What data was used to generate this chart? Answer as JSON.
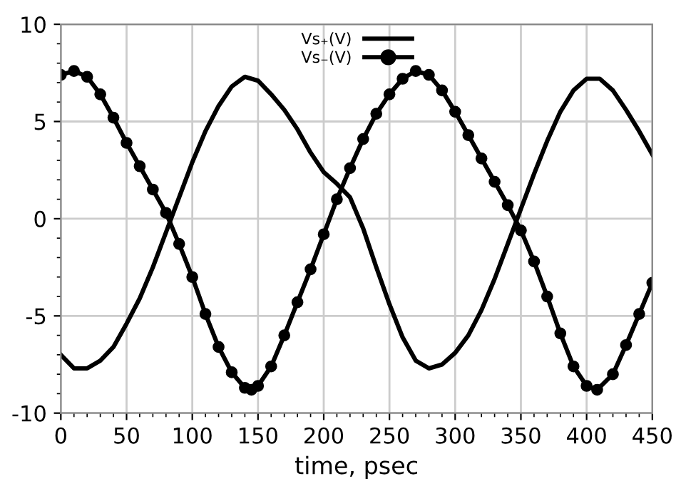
{
  "chart_data": {
    "type": "line",
    "xlabel": "time, psec",
    "xlim": [
      0,
      450
    ],
    "xticks": [
      0,
      50,
      100,
      150,
      200,
      250,
      300,
      350,
      400,
      450
    ],
    "ylim": [
      -10,
      10
    ],
    "yticks": [
      -10,
      -5,
      0,
      5,
      10
    ],
    "grid": true,
    "legend": "top",
    "series": [
      {
        "name": "Vs₊(V)",
        "color": "#000000",
        "marker": "none",
        "x": [
          0,
          10,
          20,
          30,
          40,
          50,
          60,
          70,
          80,
          90,
          100,
          110,
          120,
          130,
          140,
          150,
          160,
          170,
          180,
          190,
          200,
          210,
          220,
          230,
          240,
          250,
          260,
          270,
          280,
          290,
          300,
          310,
          320,
          330,
          340,
          350,
          360,
          370,
          380,
          390,
          400,
          410,
          420,
          430,
          440,
          450
        ],
        "values": [
          -7.0,
          -7.7,
          -7.7,
          -7.3,
          -6.6,
          -5.4,
          -4.1,
          -2.5,
          -0.7,
          1.1,
          2.9,
          4.5,
          5.8,
          6.8,
          7.3,
          7.1,
          6.4,
          5.6,
          4.6,
          3.4,
          2.4,
          1.8,
          1.1,
          -0.5,
          -2.5,
          -4.4,
          -6.1,
          -7.3,
          -7.7,
          -7.5,
          -6.9,
          -6.0,
          -4.7,
          -3.1,
          -1.3,
          0.5,
          2.3,
          4.0,
          5.5,
          6.6,
          7.2,
          7.2,
          6.6,
          5.6,
          4.5,
          3.3
        ]
      },
      {
        "name": "Vs₋(V)",
        "color": "#000000",
        "marker": "circle",
        "x": [
          0,
          10,
          20,
          30,
          40,
          50,
          60,
          70,
          80,
          90,
          100,
          110,
          120,
          130,
          140,
          145,
          150,
          160,
          170,
          180,
          190,
          200,
          210,
          220,
          230,
          240,
          250,
          260,
          270,
          280,
          290,
          300,
          310,
          320,
          330,
          340,
          350,
          360,
          370,
          380,
          390,
          400,
          408,
          420,
          430,
          440,
          450
        ],
        "values": [
          7.4,
          7.6,
          7.3,
          6.4,
          5.2,
          3.9,
          2.7,
          1.5,
          0.3,
          -1.3,
          -3.0,
          -4.9,
          -6.6,
          -7.9,
          -8.7,
          -8.8,
          -8.6,
          -7.6,
          -6.0,
          -4.3,
          -2.6,
          -0.8,
          1.0,
          2.6,
          4.1,
          5.4,
          6.4,
          7.2,
          7.6,
          7.4,
          6.6,
          5.5,
          4.3,
          3.1,
          1.9,
          0.7,
          -0.6,
          -2.2,
          -4.0,
          -5.9,
          -7.6,
          -8.6,
          -8.8,
          -8.0,
          -6.5,
          -4.9,
          -3.3
        ]
      }
    ]
  }
}
